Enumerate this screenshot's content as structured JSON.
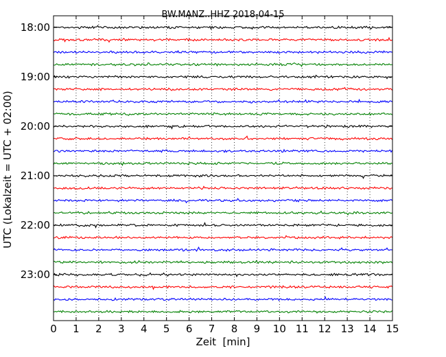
{
  "chart_data": {
    "type": "line",
    "title": "BW.MANZ..HHZ 2018-04-15",
    "xlabel": "Zeit  [min]",
    "ylabel": "UTC (Lokalzeit = UTC + 02:00)",
    "xlim": [
      0,
      15
    ],
    "x_ticks": [
      "0",
      "1",
      "2",
      "3",
      "4",
      "5",
      "6",
      "7",
      "8",
      "9",
      "10",
      "11",
      "12",
      "13",
      "14",
      "15"
    ],
    "y_ticks": [
      "18:00",
      "19:00",
      "20:00",
      "21:00",
      "22:00",
      "23:00"
    ],
    "grid": "vertical dotted",
    "trace_interval_minutes": 15,
    "start_time": "18:00",
    "trace_count": 24,
    "colors": [
      "#000000",
      "#ff0000",
      "#0000ff",
      "#008000"
    ]
  }
}
